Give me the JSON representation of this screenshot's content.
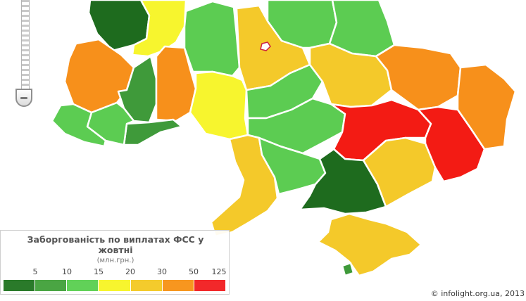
{
  "map": {
    "colors": {
      "c1": "#1e6b1e",
      "c2": "#3f9a3a",
      "c3": "#5ccc52",
      "c4": "#f7f52e",
      "c5": "#f4c92a",
      "c6": "#f7901b",
      "c7": "#f31b14"
    }
  },
  "legend": {
    "title_line1": "Заборгованість по виплатах ФСС у",
    "title_line2": "жовтні",
    "unit": "(млн.грн.)",
    "ticks": [
      "5",
      "10",
      "15",
      "20",
      "30",
      "50",
      "125"
    ],
    "swatch_colors": [
      "#2a7a2a",
      "#4aa543",
      "#61d158",
      "#f7f52e",
      "#f4cb2c",
      "#f7961f",
      "#f2282a"
    ]
  },
  "copyright": "© infolight.org.ua, 2013"
}
